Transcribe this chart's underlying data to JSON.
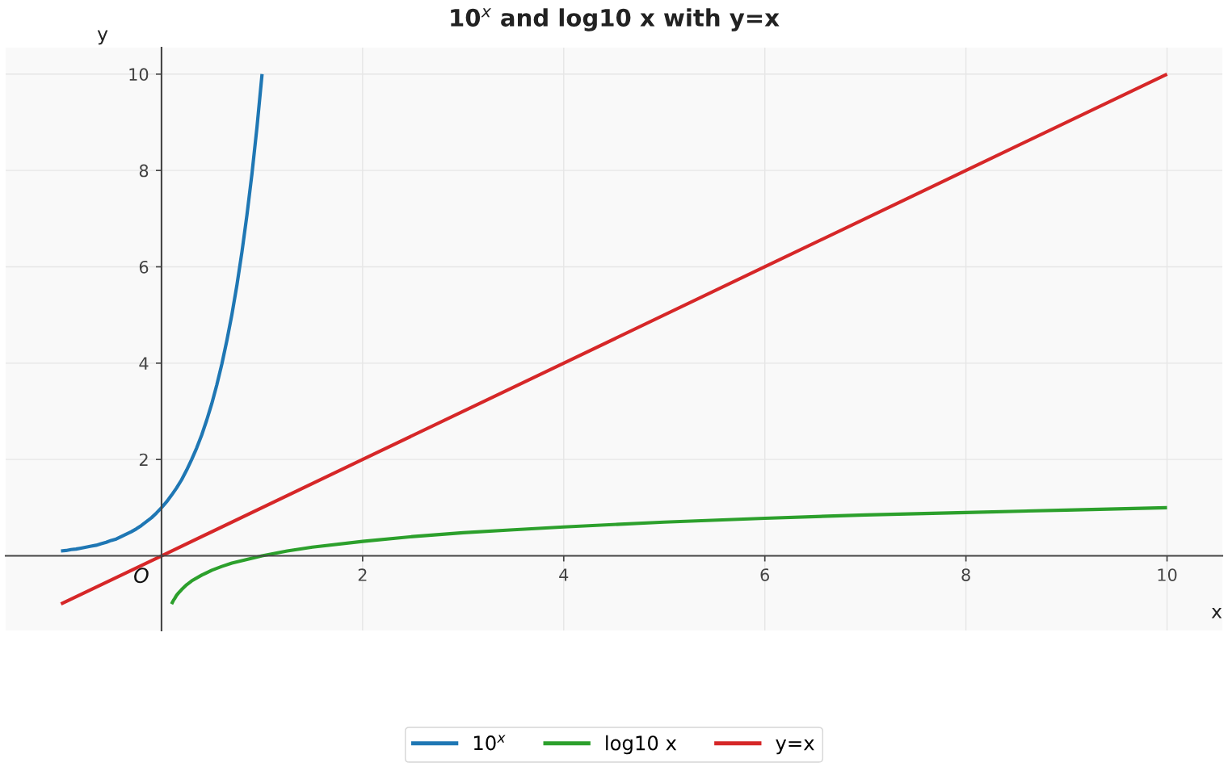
{
  "chart_data": {
    "type": "line",
    "title": "10$^{x}$ and log10 x with y=x",
    "xlabel": "x",
    "ylabel": "y",
    "xlim": [
      -1.55,
      10.55
    ],
    "ylim": [
      -1.55,
      10.55
    ],
    "xticks": [
      2,
      4,
      6,
      8,
      10
    ],
    "yticks": [
      2,
      4,
      6,
      8,
      10
    ],
    "grid": true,
    "legend": "bottom",
    "annotations": [
      {
        "text": "O",
        "x": 0,
        "y": 0
      }
    ],
    "series": [
      {
        "name": "10$^{x}$",
        "color": "#1f77b4",
        "x": [
          -1,
          -0.95,
          -0.9,
          -0.85,
          -0.8,
          -0.75,
          -0.7,
          -0.65,
          -0.6,
          -0.55,
          -0.5,
          -0.45,
          -0.4,
          -0.35,
          -0.3,
          -0.25,
          -0.2,
          -0.15,
          -0.1,
          -0.05,
          0,
          0.05,
          0.1,
          0.15,
          0.2,
          0.25,
          0.3,
          0.35,
          0.4,
          0.45,
          0.5,
          0.55,
          0.6,
          0.65,
          0.7,
          0.75,
          0.8,
          0.85,
          0.9,
          0.95,
          1
        ],
        "values": [
          0.1,
          0.11,
          0.13,
          0.14,
          0.16,
          0.18,
          0.2,
          0.22,
          0.25,
          0.28,
          0.32,
          0.35,
          0.4,
          0.45,
          0.5,
          0.56,
          0.63,
          0.71,
          0.79,
          0.89,
          1.0,
          1.12,
          1.26,
          1.41,
          1.58,
          1.78,
          2.0,
          2.24,
          2.51,
          2.82,
          3.16,
          3.55,
          3.98,
          4.47,
          5.01,
          5.62,
          6.31,
          7.08,
          7.94,
          8.91,
          10.0
        ]
      },
      {
        "name": "log10 x",
        "color": "#2ca02c",
        "x": [
          0.1,
          0.11,
          0.12,
          0.13,
          0.15,
          0.17,
          0.2,
          0.25,
          0.3,
          0.4,
          0.5,
          0.6,
          0.7,
          0.8,
          1,
          1.25,
          1.5,
          2,
          2.5,
          3,
          3.5,
          4,
          5,
          6,
          7,
          8,
          9,
          10
        ],
        "values": [
          -1.0,
          -0.96,
          -0.92,
          -0.89,
          -0.82,
          -0.77,
          -0.7,
          -0.6,
          -0.52,
          -0.4,
          -0.3,
          -0.22,
          -0.15,
          -0.1,
          0.0,
          0.1,
          0.18,
          0.3,
          0.4,
          0.48,
          0.54,
          0.6,
          0.7,
          0.78,
          0.85,
          0.9,
          0.95,
          1.0
        ]
      },
      {
        "name": "y=x",
        "color": "#d62728",
        "x": [
          -1,
          0,
          2,
          4,
          6,
          8,
          10
        ],
        "values": [
          -1,
          0,
          2,
          4,
          6,
          8,
          10
        ]
      }
    ]
  }
}
